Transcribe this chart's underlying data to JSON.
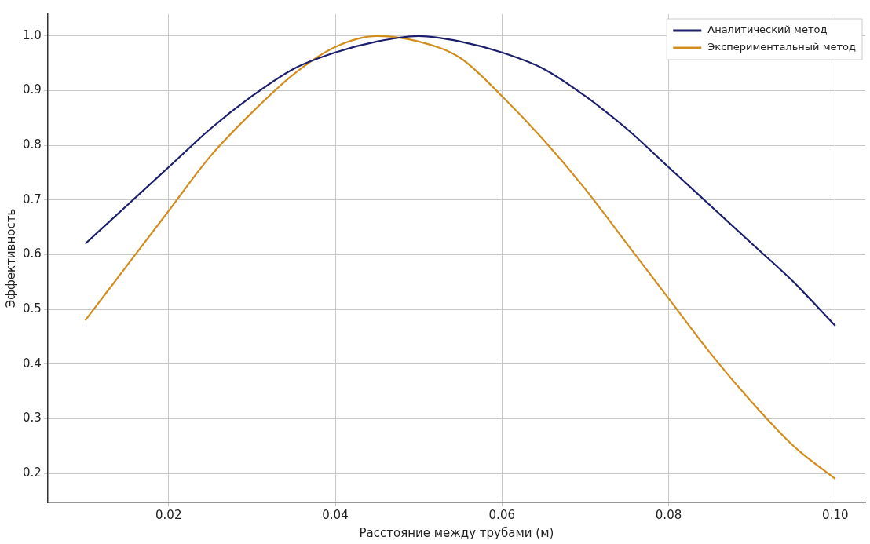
{
  "chart_data": {
    "type": "line",
    "xlabel": "Расстояние между трубами (м)",
    "ylabel": "Эффективность",
    "x": [
      0.01,
      0.015,
      0.02,
      0.025,
      0.03,
      0.035,
      0.04,
      0.045,
      0.05,
      0.055,
      0.06,
      0.065,
      0.07,
      0.075,
      0.08,
      0.085,
      0.09,
      0.095,
      0.1
    ],
    "series": [
      {
        "name": "Аналитический метод",
        "color": "#1c1f6b",
        "values": [
          0.62,
          0.69,
          0.76,
          0.83,
          0.89,
          0.94,
          0.97,
          0.99,
          1.0,
          0.99,
          0.97,
          0.94,
          0.89,
          0.83,
          0.76,
          0.69,
          0.62,
          0.55,
          0.47
        ]
      },
      {
        "name": "Экспериментальный метод",
        "color": "#d18e1c",
        "values": [
          0.48,
          0.58,
          0.68,
          0.78,
          0.86,
          0.93,
          0.98,
          1.0,
          0.99,
          0.96,
          0.89,
          0.81,
          0.72,
          0.62,
          0.52,
          0.42,
          0.33,
          0.25,
          0.19
        ]
      }
    ],
    "xlim": [
      0.0055,
      0.1036
    ],
    "xticks": [
      {
        "value": 0.02,
        "label": "0.02"
      },
      {
        "value": 0.04,
        "label": "0.04"
      },
      {
        "value": 0.06,
        "label": "0.06"
      },
      {
        "value": 0.08,
        "label": "0.08"
      },
      {
        "value": 0.1,
        "label": "0.10"
      }
    ],
    "ylim": [
      0.147,
      1.04
    ],
    "yticks": [
      {
        "value": 0.2,
        "label": "0.2"
      },
      {
        "value": 0.3,
        "label": "0.3"
      },
      {
        "value": 0.4,
        "label": "0.4"
      },
      {
        "value": 0.5,
        "label": "0.5"
      },
      {
        "value": 0.6,
        "label": "0.6"
      },
      {
        "value": 0.7,
        "label": "0.7"
      },
      {
        "value": 0.8,
        "label": "0.8"
      },
      {
        "value": 0.9,
        "label": "0.9"
      },
      {
        "value": 1.0,
        "label": "1.0"
      }
    ],
    "grid": true,
    "legend": "top right",
    "marker": "none",
    "line_style": "solid"
  }
}
